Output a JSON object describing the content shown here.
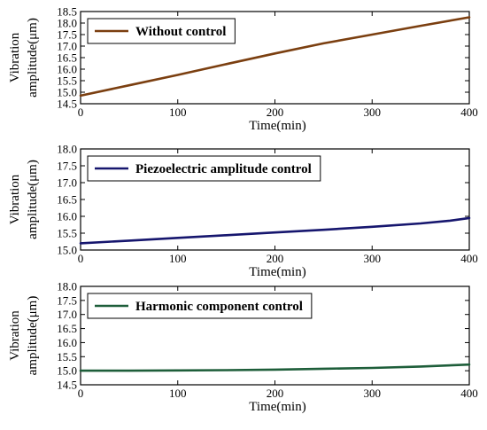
{
  "chart_data": [
    {
      "type": "line",
      "xlabel": "Time(min)",
      "ylabel": [
        "Vibration",
        "amplitude(μm)"
      ],
      "xlim": [
        0,
        400
      ],
      "ylim": [
        14.5,
        18.5
      ],
      "xticks": [
        0,
        100,
        200,
        300,
        400
      ],
      "yticks": [
        14.5,
        15.0,
        15.5,
        16.0,
        16.5,
        17.0,
        17.5,
        18.0,
        18.5
      ],
      "ytick_labels": [
        "14.5",
        "15.0",
        "15.5",
        "16.0",
        "16.5",
        "17.0",
        "17.5",
        "18.0",
        "18.5"
      ],
      "legend_position": "top-left",
      "series": [
        {
          "name": "Without control",
          "color": "#7B3F10",
          "x": [
            0,
            50,
            100,
            150,
            200,
            250,
            300,
            350,
            400
          ],
          "y": [
            14.85,
            15.3,
            15.75,
            16.22,
            16.68,
            17.12,
            17.5,
            17.88,
            18.25
          ]
        }
      ]
    },
    {
      "type": "line",
      "xlabel": "Time(min)",
      "ylabel": [
        "Vibration",
        "amplitude(μm)"
      ],
      "xlim": [
        0,
        400
      ],
      "ylim": [
        15.0,
        18.0
      ],
      "xticks": [
        0,
        100,
        200,
        300,
        400
      ],
      "yticks": [
        15.0,
        15.5,
        16.0,
        16.5,
        17.0,
        17.5,
        18.0
      ],
      "ytick_labels": [
        "15.0",
        "15.5",
        "16.0",
        "16.5",
        "17.0",
        "17.5",
        "18.0"
      ],
      "legend_position": "top-left",
      "series": [
        {
          "name": "Piezoelectric amplitude control",
          "color": "#16166E",
          "x": [
            0,
            50,
            100,
            150,
            200,
            250,
            300,
            350,
            380,
            400
          ],
          "y": [
            15.2,
            15.28,
            15.36,
            15.44,
            15.52,
            15.6,
            15.69,
            15.79,
            15.87,
            15.95
          ]
        }
      ]
    },
    {
      "type": "line",
      "xlabel": "Time(min)",
      "ylabel": [
        "Vibration",
        "amplitude(μm)"
      ],
      "xlim": [
        0,
        400
      ],
      "ylim": [
        14.5,
        18.0
      ],
      "xticks": [
        0,
        100,
        200,
        300,
        400
      ],
      "yticks": [
        14.5,
        15.0,
        15.5,
        16.0,
        16.5,
        17.0,
        17.5,
        18.0
      ],
      "ytick_labels": [
        "14.5",
        "15.0",
        "15.5",
        "16.0",
        "16.5",
        "17.0",
        "17.5",
        "18.0"
      ],
      "legend_position": "top-left",
      "series": [
        {
          "name": "Harmonic component control",
          "color": "#1E5E3A",
          "x": [
            0,
            50,
            100,
            150,
            200,
            250,
            300,
            350,
            400
          ],
          "y": [
            15.0,
            15.0,
            15.01,
            15.02,
            15.04,
            15.07,
            15.1,
            15.15,
            15.22
          ]
        }
      ]
    }
  ]
}
